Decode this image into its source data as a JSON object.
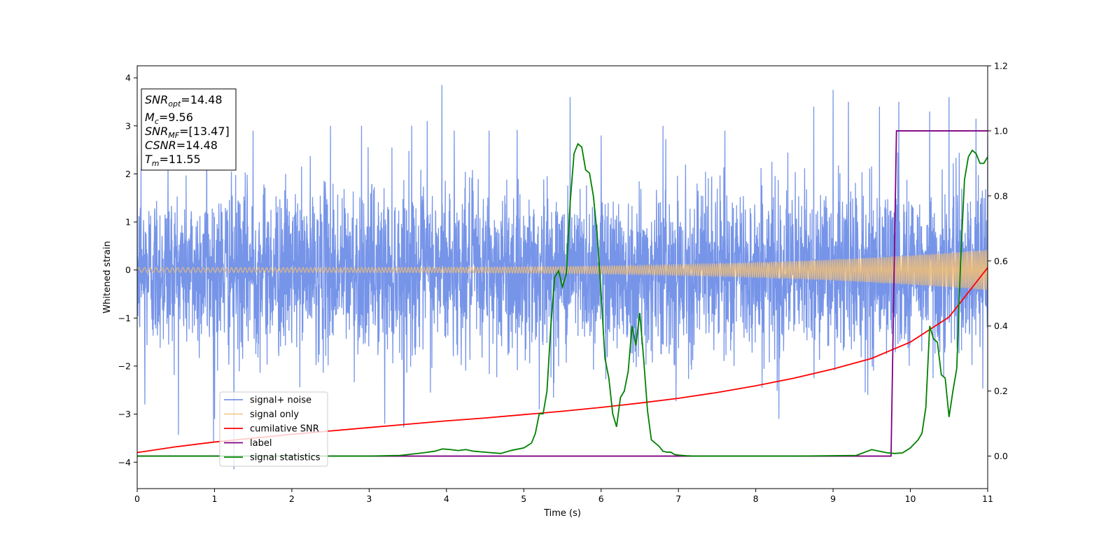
{
  "chart_data": {
    "type": "line",
    "title": "",
    "xlabel": "Time (s)",
    "ylabel": "Whitened strain",
    "y2label": "",
    "xlim": [
      0,
      11
    ],
    "ylim": [
      -4.55,
      4.25
    ],
    "y2lim": [
      -0.1,
      1.2
    ],
    "xticks": [
      "0",
      "1",
      "2",
      "3",
      "4",
      "5",
      "6",
      "7",
      "8",
      "9",
      "10",
      "11"
    ],
    "yticks": [
      "4",
      "3",
      "2",
      "1",
      "0",
      "−1",
      "−2",
      "−3",
      "−4"
    ],
    "y2ticks": [
      "1.2",
      "1.0",
      "0.8",
      "0.6",
      "0.4",
      "0.2",
      "0.0"
    ],
    "grid": false,
    "legend_position": "lower-left",
    "annotation": {
      "snr_opt": {
        "sym": "SNR",
        "sub": "opt",
        "value": "=14.48"
      },
      "mc": {
        "sym": "M",
        "sub": "c",
        "value": "=9.56"
      },
      "snr_mf": {
        "sym": "SNR",
        "sub": "MF",
        "value": "=[13.47]"
      },
      "csnr": {
        "sym": "CSNR",
        "value": "=14.48"
      },
      "tm": {
        "sym": "T",
        "sub": "m",
        "value": "=11.55"
      }
    },
    "series": [
      {
        "name": "signal+ noise",
        "color": "#6a8be6",
        "axis": "left",
        "kind": "noise",
        "sigma": 1.0,
        "peaks": [
          [
            0.05,
            2.1
          ],
          [
            0.1,
            -2.8
          ],
          [
            0.4,
            2.2
          ],
          [
            0.9,
            3.2
          ],
          [
            1.0,
            -3.1
          ],
          [
            1.25,
            -4.15
          ],
          [
            1.5,
            2.9
          ],
          [
            2.5,
            3.0
          ],
          [
            2.9,
            3.0
          ],
          [
            3.2,
            -3.2
          ],
          [
            3.45,
            -3.25
          ],
          [
            3.55,
            3.0
          ],
          [
            3.75,
            3.1
          ],
          [
            3.94,
            3.85
          ],
          [
            4.1,
            2.9
          ],
          [
            4.55,
            2.9
          ],
          [
            5.2,
            -2.9
          ],
          [
            5.6,
            3.6
          ],
          [
            6.0,
            2.8
          ],
          [
            6.8,
            3.0
          ],
          [
            7.6,
            2.9
          ],
          [
            8.3,
            -3.1
          ],
          [
            8.75,
            3.4
          ],
          [
            9.0,
            3.75
          ],
          [
            9.2,
            3.5
          ],
          [
            9.45,
            -2.6
          ],
          [
            9.6,
            3.4
          ],
          [
            9.85,
            3.5
          ],
          [
            10.25,
            3.3
          ],
          [
            10.5,
            3.6
          ],
          [
            10.85,
            3.15
          ],
          [
            11.0,
            2.8
          ]
        ]
      },
      {
        "name": "signal only",
        "color": "#f5bf73",
        "axis": "left",
        "kind": "chirp",
        "amplitude_start": 0.05,
        "amplitude_end": 0.42
      },
      {
        "name": "cumilative SNR",
        "color": "#ff0000",
        "axis": "left",
        "x": [
          0,
          0.5,
          1,
          1.5,
          2,
          2.5,
          3,
          3.5,
          4,
          4.5,
          5,
          5.5,
          6,
          6.5,
          7,
          7.5,
          8,
          8.5,
          9,
          9.5,
          10,
          10.5,
          11
        ],
        "y": [
          -3.8,
          -3.68,
          -3.58,
          -3.5,
          -3.42,
          -3.35,
          -3.28,
          -3.21,
          -3.14,
          -3.08,
          -3.01,
          -2.94,
          -2.86,
          -2.77,
          -2.67,
          -2.55,
          -2.41,
          -2.25,
          -2.06,
          -1.84,
          -1.5,
          -0.98,
          0.05
        ]
      },
      {
        "name": "label",
        "color": "#800080",
        "axis": "right",
        "x": [
          0,
          9.75,
          9.82,
          11
        ],
        "y": [
          0.0,
          0.0,
          1.0,
          1.0
        ]
      },
      {
        "name": "signal statistics",
        "color": "#008000",
        "axis": "right",
        "x": [
          0,
          1,
          2,
          3,
          3.4,
          3.7,
          3.85,
          3.95,
          4.05,
          4.15,
          4.25,
          4.35,
          4.5,
          4.7,
          4.85,
          5.0,
          5.1,
          5.15,
          5.2,
          5.25,
          5.3,
          5.35,
          5.4,
          5.45,
          5.5,
          5.55,
          5.6,
          5.65,
          5.7,
          5.75,
          5.8,
          5.85,
          5.9,
          5.95,
          6.0,
          6.05,
          6.1,
          6.15,
          6.2,
          6.25,
          6.3,
          6.35,
          6.4,
          6.45,
          6.5,
          6.55,
          6.6,
          6.65,
          6.7,
          6.75,
          6.8,
          6.85,
          6.9,
          6.95,
          7.0,
          7.1,
          7.2,
          7.3,
          7.4,
          7.6,
          8.0,
          8.5,
          9.0,
          9.3,
          9.5,
          9.6,
          9.7,
          9.8,
          9.9,
          10.0,
          10.1,
          10.15,
          10.2,
          10.25,
          10.3,
          10.35,
          10.4,
          10.45,
          10.5,
          10.55,
          10.6,
          10.65,
          10.7,
          10.75,
          10.8,
          10.85,
          10.9,
          10.95,
          11.0
        ],
        "y": [
          0.0,
          0.0,
          0.0,
          0.0,
          0.002,
          0.01,
          0.015,
          0.022,
          0.02,
          0.017,
          0.02,
          0.015,
          0.012,
          0.008,
          0.018,
          0.025,
          0.04,
          0.07,
          0.13,
          0.13,
          0.2,
          0.4,
          0.55,
          0.57,
          0.52,
          0.56,
          0.78,
          0.93,
          0.96,
          0.95,
          0.88,
          0.87,
          0.8,
          0.68,
          0.5,
          0.3,
          0.24,
          0.13,
          0.09,
          0.18,
          0.2,
          0.26,
          0.4,
          0.34,
          0.44,
          0.3,
          0.14,
          0.05,
          0.04,
          0.03,
          0.015,
          0.012,
          0.012,
          0.005,
          0.003,
          0.001,
          0.0,
          0.0,
          0.0,
          0.0,
          0.0,
          0.0,
          0.001,
          0.002,
          0.02,
          0.015,
          0.01,
          0.008,
          0.01,
          0.025,
          0.05,
          0.07,
          0.15,
          0.4,
          0.36,
          0.35,
          0.25,
          0.24,
          0.12,
          0.2,
          0.27,
          0.6,
          0.85,
          0.92,
          0.94,
          0.93,
          0.9,
          0.9,
          0.92
        ]
      }
    ]
  }
}
